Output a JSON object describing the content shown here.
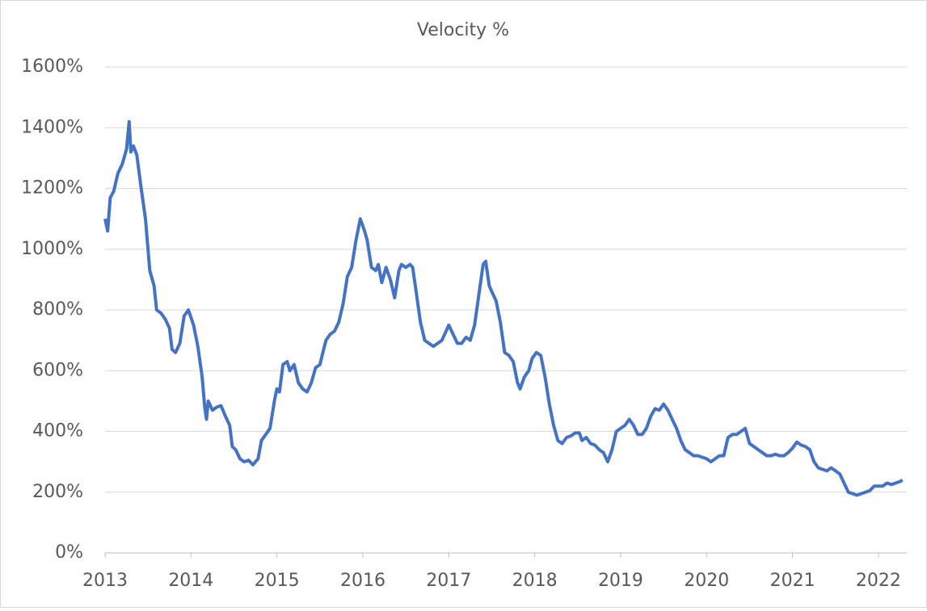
{
  "chart_data": {
    "type": "line",
    "title": "Velocity %",
    "color": "#4472c4",
    "grid": true,
    "xlim": [
      2013,
      2022.33
    ],
    "xticks": [
      2013,
      2014,
      2015,
      2016,
      2017,
      2018,
      2019,
      2020,
      2021,
      2022
    ],
    "ylim": [
      0,
      1600
    ],
    "yticks": [
      {
        "value": 0,
        "label": "0%"
      },
      {
        "value": 200,
        "label": "200%"
      },
      {
        "value": 400,
        "label": "400%"
      },
      {
        "value": 600,
        "label": "600%"
      },
      {
        "value": 800,
        "label": "800%"
      },
      {
        "value": 1000,
        "label": "1000%"
      },
      {
        "value": 1200,
        "label": "1200%"
      },
      {
        "value": 1400,
        "label": "1400%"
      },
      {
        "value": 1600,
        "label": "1600%"
      }
    ],
    "x": [
      2013.0,
      2013.03,
      2013.06,
      2013.1,
      2013.15,
      2013.2,
      2013.25,
      2013.28,
      2013.3,
      2013.33,
      2013.37,
      2013.42,
      2013.47,
      2013.52,
      2013.57,
      2013.6,
      2013.65,
      2013.7,
      2013.75,
      2013.78,
      2013.82,
      2013.87,
      2013.92,
      2013.97,
      2014.03,
      2014.08,
      2014.13,
      2014.16,
      2014.18,
      2014.2,
      2014.25,
      2014.3,
      2014.35,
      2014.4,
      2014.45,
      2014.48,
      2014.52,
      2014.57,
      2014.62,
      2014.67,
      2014.72,
      2014.78,
      2014.82,
      2014.87,
      2014.92,
      2014.97,
      2015.0,
      2015.03,
      2015.07,
      2015.12,
      2015.15,
      2015.2,
      2015.25,
      2015.3,
      2015.35,
      2015.4,
      2015.45,
      2015.5,
      2015.57,
      2015.62,
      2015.67,
      2015.72,
      2015.77,
      2015.82,
      2015.87,
      2015.92,
      2015.97,
      2016.02,
      2016.05,
      2016.1,
      2016.15,
      2016.18,
      2016.22,
      2016.27,
      2016.32,
      2016.37,
      2016.42,
      2016.45,
      2016.5,
      2016.55,
      2016.58,
      2016.62,
      2016.67,
      2016.72,
      2016.77,
      2016.82,
      2016.87,
      2016.92,
      2017.0,
      2017.05,
      2017.1,
      2017.15,
      2017.2,
      2017.25,
      2017.3,
      2017.35,
      2017.4,
      2017.43,
      2017.47,
      2017.5,
      2017.55,
      2017.6,
      2017.65,
      2017.7,
      2017.75,
      2017.8,
      2017.83,
      2017.88,
      2017.93,
      2017.97,
      2018.02,
      2018.07,
      2018.12,
      2018.17,
      2018.22,
      2018.27,
      2018.32,
      2018.37,
      2018.42,
      2018.47,
      2018.52,
      2018.55,
      2018.6,
      2018.65,
      2018.7,
      2018.75,
      2018.8,
      2018.85,
      2018.9,
      2018.95,
      2019.0,
      2019.05,
      2019.1,
      2019.15,
      2019.2,
      2019.25,
      2019.3,
      2019.35,
      2019.4,
      2019.45,
      2019.5,
      2019.55,
      2019.6,
      2019.65,
      2019.7,
      2019.75,
      2019.8,
      2019.85,
      2019.9,
      2019.95,
      2020.0,
      2020.05,
      2020.1,
      2020.15,
      2020.2,
      2020.25,
      2020.3,
      2020.35,
      2020.4,
      2020.45,
      2020.5,
      2020.55,
      2020.6,
      2020.65,
      2020.7,
      2020.75,
      2020.8,
      2020.85,
      2020.9,
      2020.95,
      2021.0,
      2021.05,
      2021.1,
      2021.15,
      2021.2,
      2021.25,
      2021.3,
      2021.35,
      2021.4,
      2021.45,
      2021.5,
      2021.55,
      2021.6,
      2021.65,
      2021.7,
      2021.75,
      2021.8,
      2021.85,
      2021.9,
      2021.95,
      2022.0,
      2022.05,
      2022.1,
      2022.15,
      2022.2,
      2022.25,
      2022.28
    ],
    "values": [
      1100,
      1060,
      1170,
      1190,
      1250,
      1280,
      1330,
      1420,
      1320,
      1340,
      1310,
      1200,
      1100,
      930,
      880,
      800,
      790,
      770,
      740,
      670,
      660,
      690,
      780,
      800,
      750,
      680,
      580,
      480,
      440,
      500,
      470,
      480,
      485,
      450,
      420,
      350,
      340,
      310,
      300,
      305,
      290,
      310,
      370,
      390,
      410,
      500,
      540,
      530,
      620,
      630,
      600,
      620,
      560,
      540,
      530,
      560,
      610,
      620,
      700,
      720,
      730,
      760,
      820,
      910,
      940,
      1030,
      1100,
      1060,
      1030,
      940,
      930,
      950,
      890,
      940,
      900,
      840,
      930,
      950,
      940,
      950,
      940,
      860,
      760,
      700,
      690,
      680,
      690,
      700,
      750,
      720,
      690,
      690,
      710,
      700,
      750,
      850,
      950,
      960,
      880,
      860,
      830,
      760,
      660,
      650,
      630,
      560,
      540,
      580,
      600,
      640,
      660,
      650,
      580,
      490,
      420,
      370,
      360,
      380,
      385,
      395,
      395,
      370,
      380,
      360,
      355,
      340,
      330,
      300,
      340,
      400,
      410,
      420,
      440,
      420,
      390,
      390,
      410,
      450,
      475,
      470,
      490,
      470,
      440,
      410,
      370,
      340,
      330,
      320,
      320,
      315,
      310,
      300,
      310,
      320,
      320,
      380,
      390,
      390,
      400,
      410,
      360,
      350,
      340,
      330,
      320,
      320,
      325,
      320,
      320,
      330,
      345,
      365,
      355,
      350,
      340,
      300,
      280,
      275,
      270,
      280,
      270,
      260,
      230,
      200,
      195,
      190,
      195,
      200,
      205,
      220,
      220,
      220,
      230,
      225,
      230,
      235,
      240
    ]
  }
}
